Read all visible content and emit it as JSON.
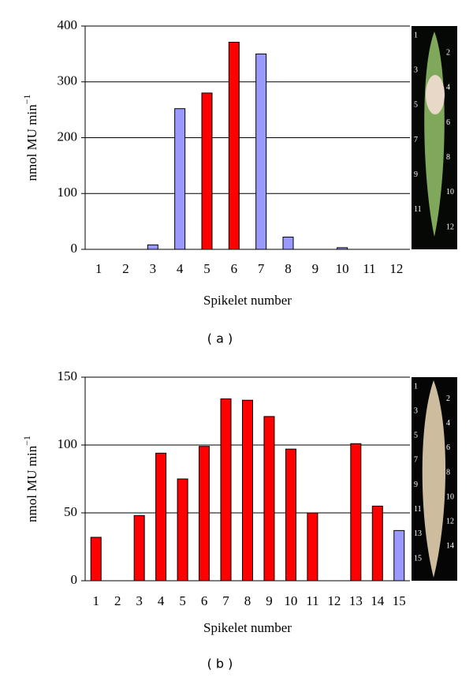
{
  "chart_data": [
    {
      "type": "bar",
      "caption": "( a )",
      "y_label": "nmol MU min",
      "y_label_sup": "−1",
      "x_label": "Spikelet number",
      "categories": [
        "1",
        "2",
        "3",
        "4",
        "5",
        "6",
        "7",
        "8",
        "9",
        "10",
        "11",
        "12"
      ],
      "values": [
        0,
        0,
        8,
        252,
        280,
        371,
        350,
        22,
        0,
        3,
        0,
        0
      ],
      "colors": [
        "#9999ff",
        "#9999ff",
        "#9999ff",
        "#9999ff",
        "#ff0000",
        "#ff0000",
        "#9999ff",
        "#9999ff",
        "#9999ff",
        "#9999ff",
        "#9999ff",
        "#9999ff"
      ],
      "ylim": [
        0,
        400
      ],
      "yticks": [
        0,
        100,
        200,
        300,
        400
      ],
      "grid": true,
      "photo_labels": [
        "1",
        "2",
        "3",
        "4",
        "5",
        "6",
        "7",
        "8",
        "9",
        "10",
        "11",
        "12"
      ]
    },
    {
      "type": "bar",
      "caption": "( b )",
      "y_label": "nmol MU min",
      "y_label_sup": "−1",
      "x_label": "Spikelet number",
      "categories": [
        "1",
        "2",
        "3",
        "4",
        "5",
        "6",
        "7",
        "8",
        "9",
        "10",
        "11",
        "12",
        "13",
        "14",
        "15"
      ],
      "values": [
        32,
        0,
        48,
        94,
        75,
        99,
        134,
        133,
        121,
        97,
        50,
        0,
        101,
        55,
        37
      ],
      "colors": [
        "#ff0000",
        "#ff0000",
        "#ff0000",
        "#ff0000",
        "#ff0000",
        "#ff0000",
        "#ff0000",
        "#ff0000",
        "#ff0000",
        "#ff0000",
        "#ff0000",
        "#ff0000",
        "#ff0000",
        "#ff0000",
        "#9999ff"
      ],
      "ylim": [
        0,
        150
      ],
      "yticks": [
        0,
        50,
        100,
        150
      ],
      "grid": true,
      "photo_labels": [
        "1",
        "2",
        "3",
        "4",
        "5",
        "6",
        "7",
        "8",
        "9",
        "10",
        "11",
        "12",
        "13",
        "14",
        "15"
      ]
    }
  ]
}
